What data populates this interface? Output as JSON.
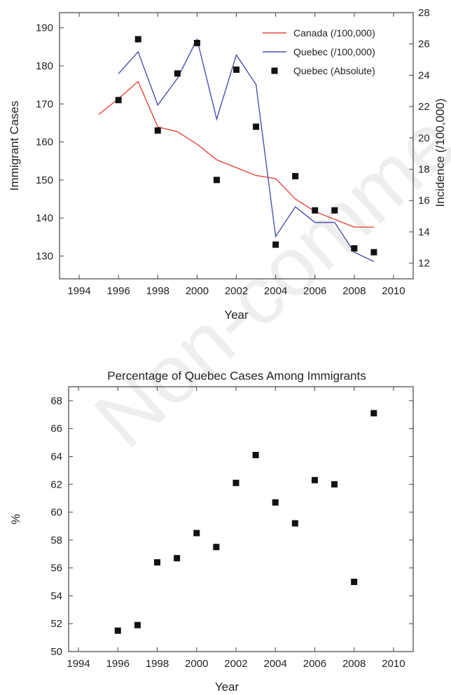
{
  "watermark": "Non-comme",
  "chart_data": [
    {
      "type": "line",
      "title": "",
      "xlabel": "Year",
      "ylabel": "Immigrant Cases",
      "y2label": "Incidence (/100,000)",
      "xlim": [
        1993,
        2011
      ],
      "ylim": [
        124,
        194
      ],
      "y2lim": [
        11,
        28
      ],
      "xticks": [
        1994,
        1996,
        1998,
        2000,
        2002,
        2004,
        2006,
        2008,
        2010
      ],
      "yticks": [
        130,
        140,
        150,
        160,
        170,
        180,
        190
      ],
      "y2ticks": [
        12,
        14,
        16,
        18,
        20,
        22,
        24,
        26,
        28
      ],
      "grid": false,
      "legend_position": "top-right",
      "series": [
        {
          "name": "Canada (/100,000)",
          "type": "line",
          "axis": "right",
          "color": "#e8453c",
          "x": [
            1995,
            1996,
            1997,
            1998,
            1999,
            2000,
            2001,
            2002,
            2003,
            2004,
            2005,
            2006,
            2007,
            2008,
            2009
          ],
          "y": [
            21.5,
            22.5,
            23.6,
            20.7,
            20.4,
            19.6,
            18.6,
            18.1,
            17.6,
            17.4,
            16.1,
            15.3,
            14.8,
            14.3,
            14.3
          ]
        },
        {
          "name": "Quebec (/100,000)",
          "type": "line",
          "axis": "right",
          "color": "#4a4fb0",
          "x": [
            1996,
            1997,
            1998,
            1999,
            2000,
            2001,
            2002,
            2003,
            2004,
            2005,
            2006,
            2007,
            2008,
            2009
          ],
          "y": [
            24.1,
            25.5,
            22.1,
            23.8,
            26.3,
            21.2,
            25.3,
            23.4,
            13.7,
            15.6,
            14.6,
            14.6,
            12.7,
            12.1
          ]
        },
        {
          "name": "Quebec (Absolute)",
          "type": "scatter",
          "axis": "left",
          "color": "#111111",
          "x": [
            1996,
            1997,
            1998,
            1999,
            2000,
            2001,
            2002,
            2003,
            2004,
            2005,
            2006,
            2007,
            2008,
            2009
          ],
          "y": [
            171,
            187,
            163,
            178,
            186,
            150,
            179,
            164,
            133,
            151,
            142,
            142,
            132,
            131
          ]
        }
      ]
    },
    {
      "type": "scatter",
      "title": "Percentage of Quebec Cases Among Immigrants",
      "xlabel": "Year",
      "ylabel": "%",
      "xlim": [
        1993.5,
        2011
      ],
      "ylim": [
        50,
        69
      ],
      "xticks": [
        1994,
        1996,
        1998,
        2000,
        2002,
        2004,
        2006,
        2008,
        2010
      ],
      "yticks": [
        50,
        52,
        54,
        56,
        58,
        60,
        62,
        64,
        66,
        68
      ],
      "grid": false,
      "series": [
        {
          "color": "#111111",
          "x": [
            1996,
            1997,
            1998,
            1999,
            2000,
            2001,
            2002,
            2003,
            2004,
            2005,
            2006,
            2007,
            2008,
            2009
          ],
          "y": [
            51.5,
            51.9,
            56.4,
            56.7,
            58.5,
            57.5,
            62.1,
            64.1,
            60.7,
            59.2,
            62.3,
            62.0,
            55.0,
            67.1
          ]
        }
      ]
    }
  ]
}
